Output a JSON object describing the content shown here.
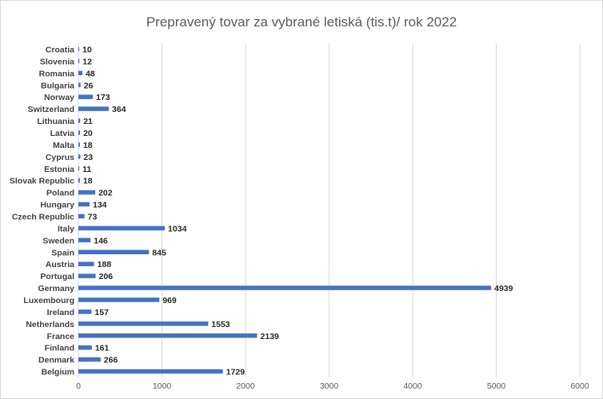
{
  "chart_data": {
    "type": "bar",
    "orientation": "horizontal",
    "title": "Prepravený tovar za vybrané letiská (tis.t)/ rok 2022",
    "categories": [
      "Croatia",
      "Slovenia",
      "Romania",
      "Bulgaria",
      "Norway",
      "Switzerland",
      "Lithuania",
      "Latvia",
      "Malta",
      "Cyprus",
      "Estonia",
      "Slovak Republic",
      "Poland",
      "Hungary",
      "Czech Republic",
      "Italy",
      "Sweden",
      "Spain",
      "Austria",
      "Portugal",
      "Germany",
      "Luxembourg",
      "Ireland",
      "Netherlands",
      "France",
      "Finland",
      "Denmark",
      "Belgium"
    ],
    "values": [
      10,
      12,
      48,
      26,
      173,
      364,
      21,
      20,
      18,
      23,
      11,
      18,
      202,
      134,
      73,
      1034,
      146,
      845,
      188,
      206,
      4939,
      969,
      157,
      1553,
      2139,
      161,
      266,
      1729
    ],
    "xlim": [
      0,
      6000
    ],
    "xticks": [
      0,
      1000,
      2000,
      3000,
      4000,
      5000,
      6000
    ],
    "xlabel": "",
    "ylabel": "",
    "grid": "vertical",
    "data_labels": true,
    "bar_color": "#4472c4",
    "grid_color": "#d9d9d9"
  }
}
